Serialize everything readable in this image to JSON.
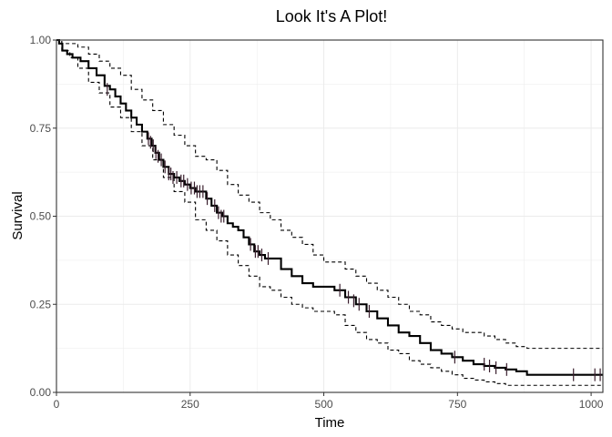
{
  "chart_data": {
    "type": "line",
    "subtype": "kaplan-meier-step",
    "title": "Look It's A Plot!",
    "xlabel": "Time",
    "ylabel": "Survival",
    "xlim": [
      0,
      1022
    ],
    "ylim": [
      0,
      1
    ],
    "x_ticks": [
      0,
      250,
      500,
      750,
      1000
    ],
    "x_tick_labels": [
      "0",
      "250",
      "500",
      "750",
      "1000"
    ],
    "y_ticks": [
      0,
      0.25,
      0.5,
      0.75,
      1.0
    ],
    "y_tick_labels": [
      "0.00",
      "0.25",
      "0.50",
      "0.75",
      "1.00"
    ],
    "grid": true,
    "legend": "none",
    "colors": {
      "survival": "#000000",
      "confidence": "#000000",
      "censor": "#3a1f2e",
      "grid": "#ebebeb",
      "panel_border": "#333333"
    },
    "series": [
      {
        "role": "estimate",
        "x": [
          0,
          5,
          11,
          20,
          30,
          45,
          60,
          75,
          90,
          100,
          110,
          120,
          130,
          140,
          150,
          160,
          170,
          178,
          185,
          192,
          200,
          210,
          220,
          230,
          240,
          250,
          260,
          270,
          280,
          290,
          300,
          310,
          320,
          330,
          340,
          350,
          360,
          370,
          380,
          390,
          400,
          420,
          440,
          460,
          480,
          500,
          520,
          540,
          560,
          580,
          600,
          620,
          640,
          660,
          680,
          700,
          720,
          740,
          760,
          780,
          800,
          820,
          840,
          860,
          880,
          1000,
          1022
        ],
        "y": [
          1.0,
          0.99,
          0.97,
          0.96,
          0.95,
          0.94,
          0.92,
          0.9,
          0.87,
          0.86,
          0.84,
          0.82,
          0.8,
          0.78,
          0.76,
          0.74,
          0.72,
          0.7,
          0.68,
          0.66,
          0.64,
          0.62,
          0.61,
          0.6,
          0.59,
          0.58,
          0.57,
          0.57,
          0.55,
          0.53,
          0.51,
          0.5,
          0.48,
          0.47,
          0.46,
          0.44,
          0.42,
          0.4,
          0.39,
          0.38,
          0.38,
          0.35,
          0.33,
          0.31,
          0.3,
          0.3,
          0.29,
          0.27,
          0.25,
          0.23,
          0.21,
          0.19,
          0.17,
          0.16,
          0.14,
          0.12,
          0.11,
          0.1,
          0.09,
          0.08,
          0.075,
          0.07,
          0.065,
          0.06,
          0.05,
          0.05,
          0.05
        ]
      },
      {
        "role": "upper-ci",
        "x": [
          0,
          10,
          25,
          40,
          60,
          80,
          100,
          120,
          140,
          160,
          180,
          200,
          220,
          240,
          260,
          280,
          300,
          320,
          340,
          360,
          380,
          400,
          420,
          440,
          460,
          480,
          500,
          520,
          540,
          560,
          580,
          600,
          620,
          640,
          660,
          680,
          700,
          720,
          740,
          760,
          780,
          800,
          820,
          840,
          860,
          880,
          1000,
          1022
        ],
        "y": [
          1.0,
          0.99,
          0.99,
          0.98,
          0.96,
          0.94,
          0.92,
          0.9,
          0.86,
          0.83,
          0.8,
          0.76,
          0.73,
          0.7,
          0.67,
          0.66,
          0.63,
          0.59,
          0.56,
          0.54,
          0.51,
          0.49,
          0.46,
          0.44,
          0.42,
          0.39,
          0.37,
          0.37,
          0.35,
          0.33,
          0.31,
          0.29,
          0.27,
          0.25,
          0.23,
          0.22,
          0.2,
          0.19,
          0.18,
          0.17,
          0.17,
          0.16,
          0.15,
          0.14,
          0.13,
          0.125,
          0.125,
          0.125
        ]
      },
      {
        "role": "lower-ci",
        "x": [
          0,
          10,
          25,
          40,
          60,
          80,
          100,
          120,
          140,
          160,
          180,
          200,
          220,
          240,
          260,
          280,
          300,
          320,
          340,
          360,
          380,
          400,
          420,
          440,
          460,
          480,
          500,
          520,
          540,
          560,
          580,
          600,
          620,
          640,
          660,
          680,
          700,
          720,
          740,
          760,
          780,
          800,
          820,
          840,
          860,
          880,
          1000,
          1022
        ],
        "y": [
          1.0,
          0.97,
          0.95,
          0.92,
          0.88,
          0.85,
          0.81,
          0.78,
          0.74,
          0.7,
          0.66,
          0.61,
          0.57,
          0.54,
          0.49,
          0.46,
          0.43,
          0.39,
          0.36,
          0.33,
          0.3,
          0.29,
          0.27,
          0.25,
          0.24,
          0.23,
          0.23,
          0.22,
          0.19,
          0.17,
          0.15,
          0.14,
          0.12,
          0.11,
          0.09,
          0.08,
          0.07,
          0.06,
          0.05,
          0.04,
          0.035,
          0.03,
          0.025,
          0.02,
          0.02,
          0.02,
          0.02,
          0.02
        ]
      }
    ],
    "censor_points": [
      {
        "x": 95,
        "y": 0.86
      },
      {
        "x": 172,
        "y": 0.72
      },
      {
        "x": 176,
        "y": 0.71
      },
      {
        "x": 181,
        "y": 0.7
      },
      {
        "x": 186,
        "y": 0.68
      },
      {
        "x": 190,
        "y": 0.67
      },
      {
        "x": 196,
        "y": 0.66
      },
      {
        "x": 203,
        "y": 0.64
      },
      {
        "x": 210,
        "y": 0.62
      },
      {
        "x": 214,
        "y": 0.62
      },
      {
        "x": 218,
        "y": 0.61
      },
      {
        "x": 225,
        "y": 0.61
      },
      {
        "x": 233,
        "y": 0.6
      },
      {
        "x": 238,
        "y": 0.6
      },
      {
        "x": 245,
        "y": 0.59
      },
      {
        "x": 252,
        "y": 0.58
      },
      {
        "x": 258,
        "y": 0.58
      },
      {
        "x": 263,
        "y": 0.57
      },
      {
        "x": 268,
        "y": 0.57
      },
      {
        "x": 274,
        "y": 0.57
      },
      {
        "x": 282,
        "y": 0.55
      },
      {
        "x": 296,
        "y": 0.53
      },
      {
        "x": 303,
        "y": 0.51
      },
      {
        "x": 308,
        "y": 0.5
      },
      {
        "x": 313,
        "y": 0.5
      },
      {
        "x": 363,
        "y": 0.42
      },
      {
        "x": 372,
        "y": 0.4
      },
      {
        "x": 377,
        "y": 0.4
      },
      {
        "x": 384,
        "y": 0.39
      },
      {
        "x": 396,
        "y": 0.38
      },
      {
        "x": 530,
        "y": 0.29
      },
      {
        "x": 546,
        "y": 0.27
      },
      {
        "x": 556,
        "y": 0.26
      },
      {
        "x": 566,
        "y": 0.25
      },
      {
        "x": 585,
        "y": 0.23
      },
      {
        "x": 745,
        "y": 0.1
      },
      {
        "x": 800,
        "y": 0.08
      },
      {
        "x": 810,
        "y": 0.075
      },
      {
        "x": 822,
        "y": 0.07
      },
      {
        "x": 842,
        "y": 0.065
      },
      {
        "x": 967,
        "y": 0.05
      },
      {
        "x": 1007,
        "y": 0.05
      },
      {
        "x": 1017,
        "y": 0.05
      }
    ]
  }
}
